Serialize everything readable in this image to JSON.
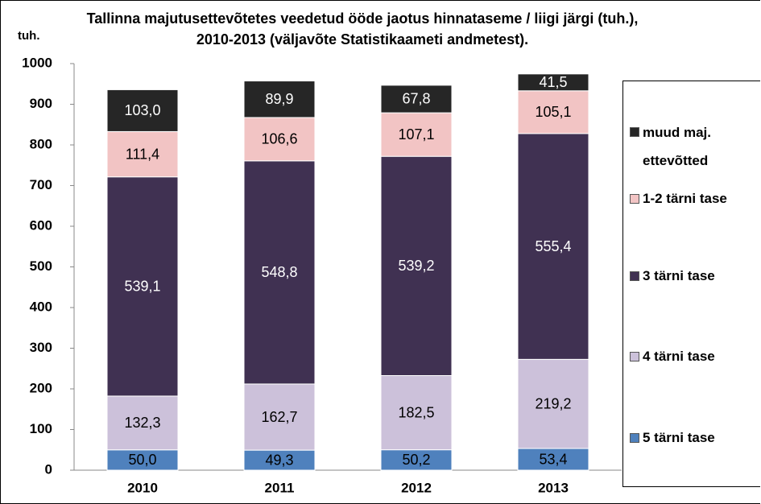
{
  "chart_data": {
    "type": "stacked_bar",
    "title": "Tallinna majutusettevõtetes veedetud ööde jaotus hinnataseme / liigi järgi (tuh.), 2010-2013 (väljavõte Statistikaameti andmetest).",
    "ylabel": "tuh.",
    "categories": [
      "2010",
      "2011",
      "2012",
      "2013"
    ],
    "series": [
      {
        "name": "5 tärni tase",
        "color": "#4f81bd",
        "label_color": "#000000",
        "values": [
          50.0,
          49.3,
          50.2,
          53.4
        ],
        "value_labels": [
          "50,0",
          "49,3",
          "50,2",
          "53,4"
        ]
      },
      {
        "name": "4 tärni tase",
        "color": "#ccc1da",
        "label_color": "#000000",
        "values": [
          132.3,
          162.7,
          182.5,
          219.2
        ],
        "value_labels": [
          "132,3",
          "162,7",
          "182,5",
          "219,2"
        ]
      },
      {
        "name": "3 tärni tase",
        "color": "#403152",
        "label_color": "#ffffff",
        "values": [
          539.1,
          548.8,
          539.2,
          555.4
        ],
        "value_labels": [
          "539,1",
          "548,8",
          "539,2",
          "555,4"
        ]
      },
      {
        "name": "1-2 tärni tase",
        "color": "#f2c4c4",
        "label_color": "#000000",
        "values": [
          111.4,
          106.6,
          107.1,
          105.1
        ],
        "value_labels": [
          "111,4",
          "106,6",
          "107,1",
          "105,1"
        ]
      },
      {
        "name": "muud maj. ettevõtted",
        "color": "#262626",
        "label_color": "#ffffff",
        "values": [
          103.0,
          89.9,
          67.8,
          41.5
        ],
        "value_labels": [
          "103,0",
          "89,9",
          "67,8",
          "41,5"
        ]
      }
    ],
    "ylim": [
      0,
      1000
    ],
    "yticks": [
      0,
      100,
      200,
      300,
      400,
      500,
      600,
      700,
      800,
      900,
      1000
    ],
    "grid": false,
    "legend": "right"
  }
}
